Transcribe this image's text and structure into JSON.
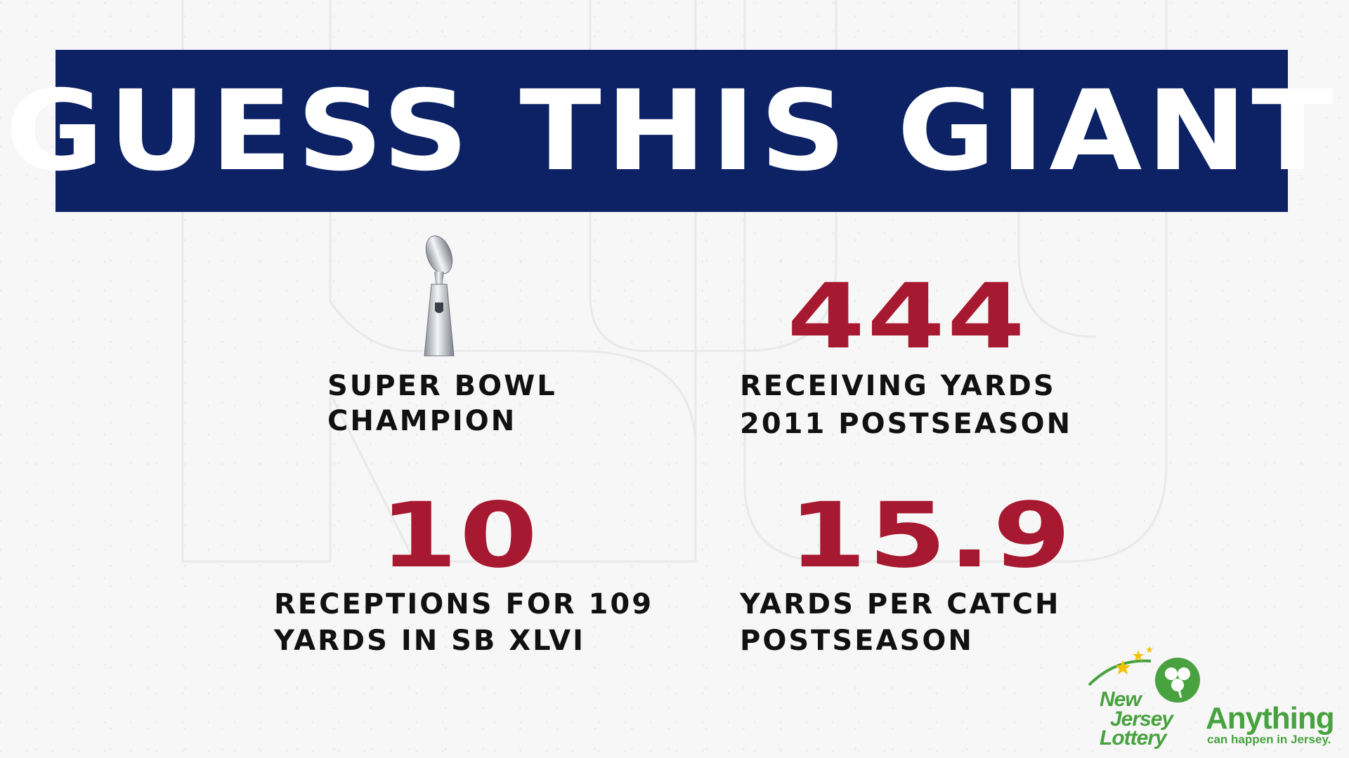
{
  "title": "GUESS THIS GIANT",
  "colors": {
    "banner": "#0c2265",
    "stat_value": "#a71930",
    "label": "#111111",
    "lottery_green": "#48a23f"
  },
  "stats": [
    {
      "icon": "super-bowl-trophy-icon",
      "label_line1": "SUPER BOWL",
      "label_line2": "CHAMPION"
    },
    {
      "value": "444",
      "label_line1": "RECEIVING YARDS",
      "label_line2": "2011 POSTSEASON"
    },
    {
      "value": "10",
      "label_line1": "RECEPTIONS FOR 109",
      "label_line2": "YARDS IN SB XLVI"
    },
    {
      "value": "15.9",
      "label_line1": "YARDS PER CATCH",
      "label_line2": "POSTSEASON"
    }
  ],
  "sponsor": {
    "logo_line1": "New",
    "logo_line2": "Jersey",
    "logo_line3": "Lottery",
    "tagline_main": "Anything",
    "tagline_sub": "can happen in Jersey.",
    "icons": [
      "shamrock-icon",
      "star-icon"
    ]
  }
}
